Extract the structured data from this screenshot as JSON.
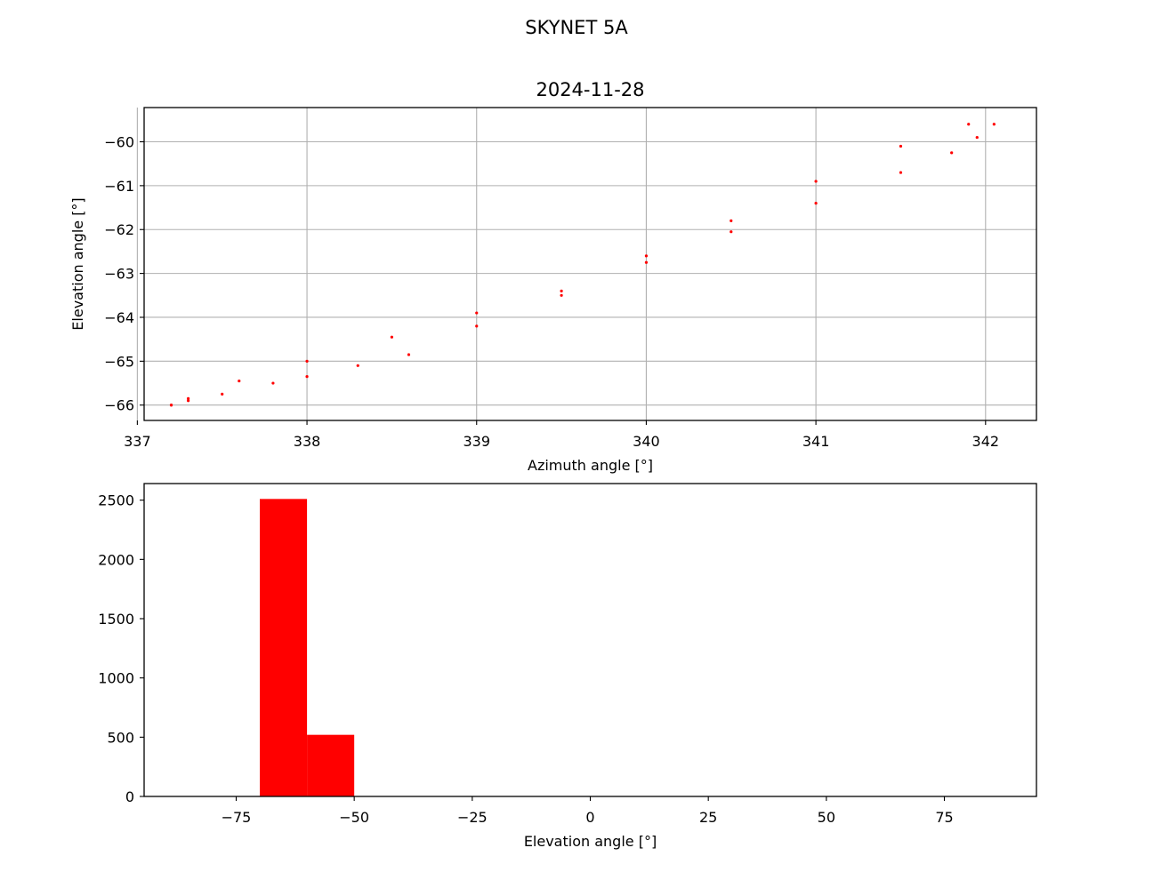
{
  "figure": {
    "suptitle": "SKYNET 5A"
  },
  "chart_data": [
    {
      "type": "scatter",
      "title": "2024-11-28",
      "xlabel": "Azimuth angle [°]",
      "ylabel": "Elevation angle [°]",
      "xlim": [
        337.04,
        342.3
      ],
      "ylim": [
        -66.35,
        -59.22
      ],
      "xticks": [
        337,
        338,
        339,
        340,
        341,
        342
      ],
      "xtick_labels": [
        "337",
        "338",
        "339",
        "340",
        "341",
        "342"
      ],
      "yticks": [
        -60,
        -61,
        -62,
        -63,
        -64,
        -65,
        -66
      ],
      "ytick_labels": [
        "−60",
        "−61",
        "−62",
        "−63",
        "−64",
        "−65",
        "−66"
      ],
      "grid": true,
      "marker_color": "#ff0000",
      "series": [
        {
          "points": [
            [
              337.2,
              -66.0
            ],
            [
              337.3,
              -65.9
            ],
            [
              337.5,
              -65.75
            ],
            [
              337.8,
              -65.5
            ],
            [
              338.0,
              -65.35
            ],
            [
              338.3,
              -65.1
            ],
            [
              338.6,
              -64.85
            ],
            [
              339.0,
              -64.2
            ],
            [
              339.5,
              -63.5
            ],
            [
              340.0,
              -62.75
            ],
            [
              340.5,
              -62.05
            ],
            [
              341.0,
              -61.4
            ],
            [
              341.5,
              -60.7
            ],
            [
              341.8,
              -60.25
            ],
            [
              341.95,
              -59.9
            ],
            [
              342.05,
              -59.6
            ],
            [
              341.9,
              -59.6
            ],
            [
              341.5,
              -60.1
            ],
            [
              341.0,
              -60.9
            ],
            [
              340.5,
              -61.8
            ],
            [
              340.0,
              -62.6
            ],
            [
              339.5,
              -63.4
            ],
            [
              339.0,
              -63.9
            ],
            [
              338.5,
              -64.45
            ],
            [
              338.0,
              -65.0
            ],
            [
              337.6,
              -65.45
            ],
            [
              337.3,
              -65.85
            ],
            [
              337.2,
              -66.0
            ]
          ]
        }
      ]
    },
    {
      "type": "bar",
      "title": "",
      "xlabel": "Elevation angle [°]",
      "ylabel": "",
      "xlim": [
        -94.5,
        94.5
      ],
      "ylim": [
        0,
        2640
      ],
      "xticks": [
        -75,
        -50,
        -25,
        0,
        25,
        50,
        75
      ],
      "xtick_labels": [
        "−75",
        "−50",
        "−25",
        "0",
        "25",
        "50",
        "75"
      ],
      "yticks": [
        0,
        500,
        1000,
        1500,
        2000,
        2500
      ],
      "ytick_labels": [
        "0",
        "500",
        "1000",
        "1500",
        "2000",
        "2500"
      ],
      "grid": false,
      "bar_color": "#ff0000",
      "bins": [
        {
          "x0": -70,
          "x1": -60,
          "value": 2510
        },
        {
          "x0": -60,
          "x1": -50,
          "value": 520
        }
      ]
    }
  ]
}
